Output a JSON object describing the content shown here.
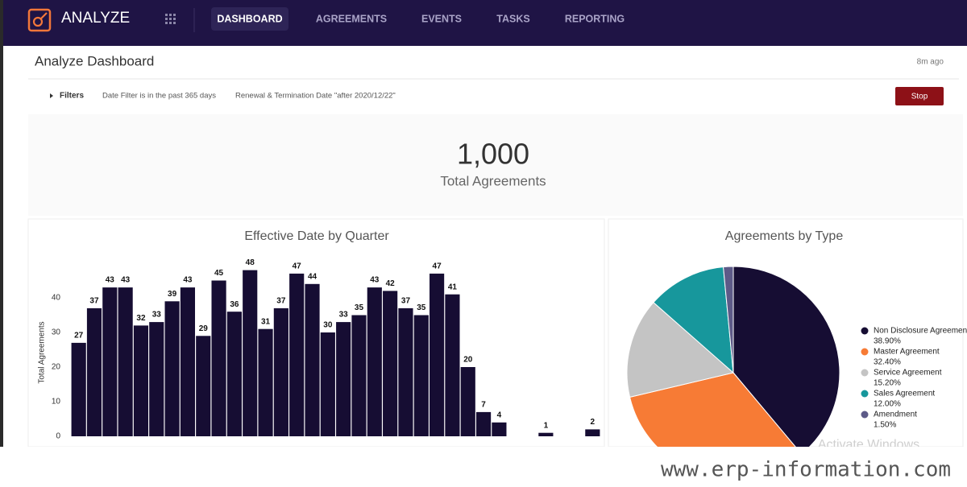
{
  "header": {
    "app_name": "ANALYZE",
    "nav": [
      "DASHBOARD",
      "AGREEMENTS",
      "EVENTS",
      "TASKS",
      "REPORTING"
    ]
  },
  "page": {
    "title": "Analyze Dashboard",
    "updated": "8m ago",
    "filters": {
      "label": "Filters",
      "items": [
        "Date Filter is in the past 365 days",
        "Renewal & Termination Date \"after 2020/12/22\""
      ],
      "button": "Stop"
    },
    "kpi": {
      "value": "1,000",
      "label": "Total Agreements"
    }
  },
  "chart_data": [
    {
      "type": "bar",
      "title": "Effective Date by Quarter",
      "y_label": "Total Agreements",
      "categories": [
        null,
        null,
        null,
        null,
        null,
        null,
        null,
        null,
        null,
        null,
        null,
        null,
        null,
        null,
        null,
        null,
        null,
        null,
        null,
        null,
        null,
        null,
        null,
        null,
        null,
        null,
        null,
        null,
        null,
        null,
        null,
        null,
        null,
        null
      ],
      "values": [
        27,
        37,
        43,
        43,
        32,
        33,
        39,
        43,
        29,
        45,
        36,
        48,
        31,
        37,
        47,
        44,
        30,
        33,
        35,
        43,
        42,
        37,
        35,
        47,
        41,
        20,
        7,
        4,
        0,
        0,
        1,
        0,
        0,
        2
      ],
      "color": "#160d33",
      "ylim": [
        0,
        50
      ],
      "yticks": [
        0,
        10,
        20,
        30,
        40
      ],
      "grid": false
    },
    {
      "type": "pie",
      "title": "Agreements by Type",
      "categories": [
        "Non Disclosure Agreement",
        "Master Agreement",
        "Service Agreement",
        "Sales Agreement",
        "Amendment"
      ],
      "values": [
        38.9,
        32.4,
        15.2,
        12.0,
        1.5
      ],
      "value_labels": [
        "38.90%",
        "32.40%",
        "15.20%",
        "12.00%",
        "1.50%"
      ],
      "colors": [
        "#160d33",
        "#f77b35",
        "#c4c4c4",
        "#17979c",
        "#5d5a88"
      ],
      "legend": "right"
    }
  ],
  "overlay": {
    "os_notice": "Activate Windows",
    "watermark": "www.erp-information.com"
  }
}
